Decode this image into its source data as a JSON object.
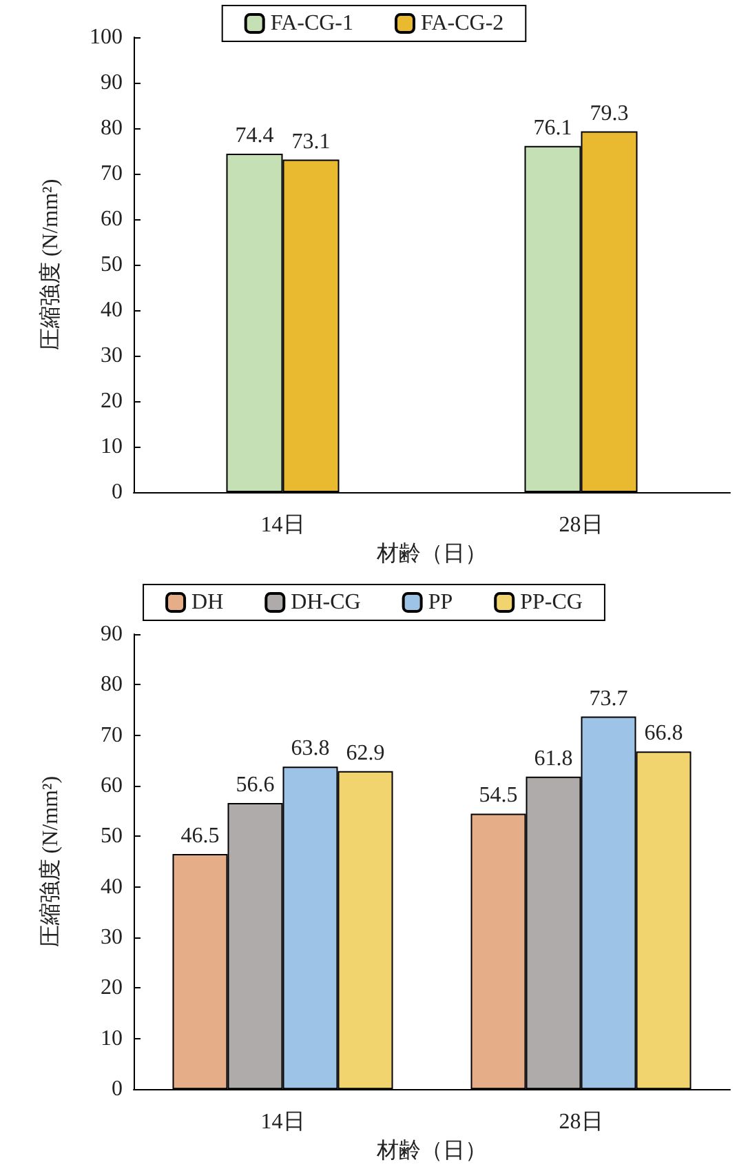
{
  "chart_data": [
    {
      "type": "bar",
      "xlabel": "材齢（日）",
      "ylabel": "圧縮強度 (N/mm²)",
      "categories": [
        "14日",
        "28日"
      ],
      "series": [
        {
          "name": "FA-CG-1",
          "color": "#c5e0b4",
          "values": [
            74.4,
            76.1
          ]
        },
        {
          "name": "FA-CG-2",
          "color": "#e9b92f",
          "values": [
            73.1,
            79.3
          ]
        }
      ],
      "ylim": [
        0,
        100
      ],
      "yticks": [
        0,
        10,
        20,
        30,
        40,
        50,
        60,
        70,
        80,
        90,
        100
      ],
      "grid": false,
      "legend": "top",
      "data_labels": true
    },
    {
      "type": "bar",
      "xlabel": "材齢（日）",
      "ylabel": "圧縮強度 (N/mm²)",
      "categories": [
        "14日",
        "28日"
      ],
      "series": [
        {
          "name": "DH",
          "color": "#e6ae88",
          "values": [
            46.5,
            54.5
          ]
        },
        {
          "name": "DH-CG",
          "color": "#afabab",
          "values": [
            56.6,
            61.8
          ]
        },
        {
          "name": "PP",
          "color": "#9dc3e6",
          "values": [
            63.8,
            73.7
          ]
        },
        {
          "name": "PP-CG",
          "color": "#f2d46e",
          "values": [
            62.9,
            66.8
          ]
        }
      ],
      "ylim": [
        0,
        90
      ],
      "yticks": [
        0,
        10,
        20,
        30,
        40,
        50,
        60,
        70,
        80,
        90
      ],
      "grid": false,
      "legend": "top",
      "data_labels": true
    }
  ]
}
